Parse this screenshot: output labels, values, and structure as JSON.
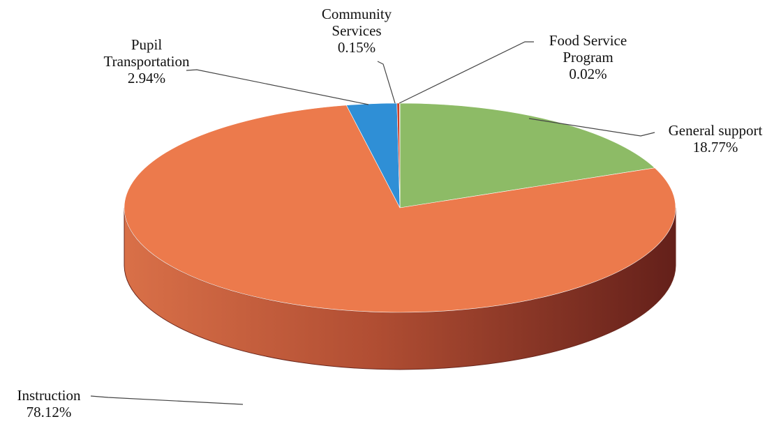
{
  "chart_data": {
    "type": "pie",
    "style": "3d",
    "title": "",
    "slices": [
      {
        "label_lines": [
          "General support"
        ],
        "value_text": "18.77%",
        "value": 18.77,
        "color": "#8dbb66"
      },
      {
        "label_lines": [
          "Instruction"
        ],
        "value_text": "78.12%",
        "value": 78.12,
        "color": "#ec7a4c"
      },
      {
        "label_lines": [
          "Pupil",
          "Transportation"
        ],
        "value_text": "2.94%",
        "value": 2.94,
        "color": "#2f8fd6"
      },
      {
        "label_lines": [
          "Community",
          "Services"
        ],
        "value_text": "0.15%",
        "value": 0.15,
        "color": "#cc3f27"
      },
      {
        "label_lines": [
          "Food Service",
          "Program"
        ],
        "value_text": "0.02%",
        "value": 0.02,
        "color": "#7a1d12"
      }
    ],
    "legend": "none",
    "data_labels": "outside with leader lines"
  }
}
